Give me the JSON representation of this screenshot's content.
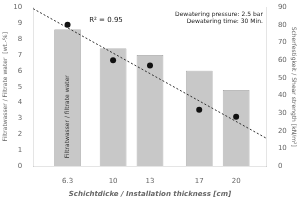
{
  "chart_data": {
    "type": "bar",
    "xlabel": "Schichtdicke / Installation thickness [cm]",
    "ylabel": "Filtratwasser / Filtrate water  [wt.-%]",
    "y2label": "Scherfestigkeit / Shear strength [kN/m²]",
    "x": [
      6.3,
      10,
      13,
      17,
      20
    ],
    "xlim": [
      3.5,
      22.5
    ],
    "xticks": [
      6.3,
      10,
      13,
      17,
      20
    ],
    "ylim": [
      0,
      10
    ],
    "yticks": [
      0,
      1,
      2,
      3,
      4,
      5,
      6,
      7,
      8,
      9,
      10
    ],
    "y2lim": [
      0,
      90
    ],
    "y2ticks": [
      0,
      10,
      20,
      30,
      40,
      50,
      60,
      70,
      80,
      90
    ],
    "grid": false,
    "series": [
      {
        "type": "bar",
        "color": "#c8c8c8",
        "values": [
          8.6,
          7.4,
          7.0,
          6.0,
          4.8
        ]
      },
      {
        "type": "scatter",
        "color": "#111111",
        "axis": "y2",
        "values": [
          80,
          60,
          57,
          32,
          28
        ]
      },
      {
        "type": "line",
        "color": "#333333",
        "line_style": "dotted",
        "axis": "y2",
        "x": [
          3.5,
          22.5
        ],
        "values": [
          89.173,
          15.639
        ]
      }
    ],
    "annotations": [
      "R² = 0.95",
      "Dewatering pressure: 2.5 bar\nDewatering time: 30 Min.",
      "Filtratwasser / filtrate water"
    ]
  }
}
